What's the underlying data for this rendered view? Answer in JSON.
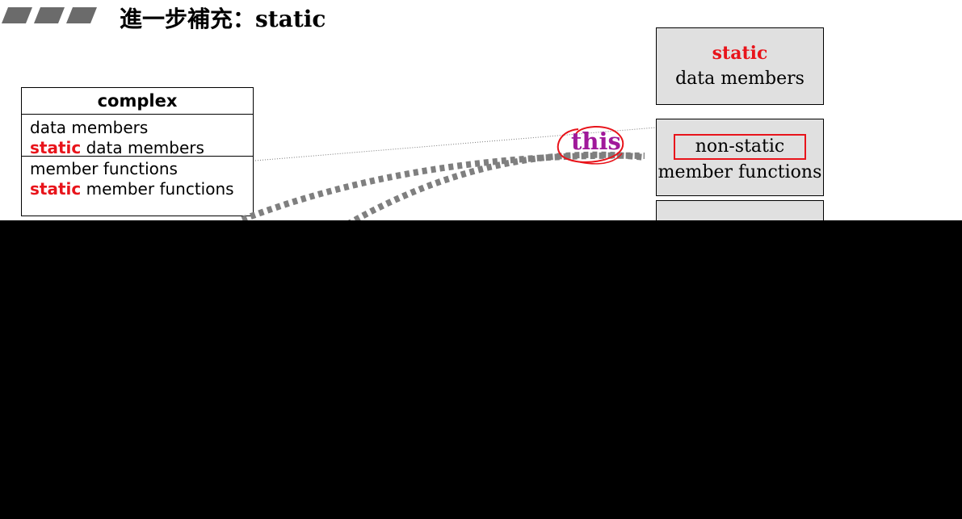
{
  "slide": {
    "title": "進一步補充：static"
  },
  "class_box": {
    "name": "complex",
    "data_section": {
      "line1": "data members",
      "line2_keyword": "static",
      "line2_rest": " data members"
    },
    "function_section": {
      "line1": "member functions",
      "line2_keyword": "static",
      "line2_rest": " member functions"
    }
  },
  "memory_boxes": [
    {
      "keyword": "static",
      "label": "data members"
    },
    {
      "keyword": "non-static",
      "label": "member functions"
    }
  ],
  "this_label": "this",
  "colors": {
    "keyword_red": "#e8141b",
    "this_purple": "#a0199a",
    "box_fill": "#e0e0e0",
    "dashed_curve": "#7f7f7f"
  }
}
